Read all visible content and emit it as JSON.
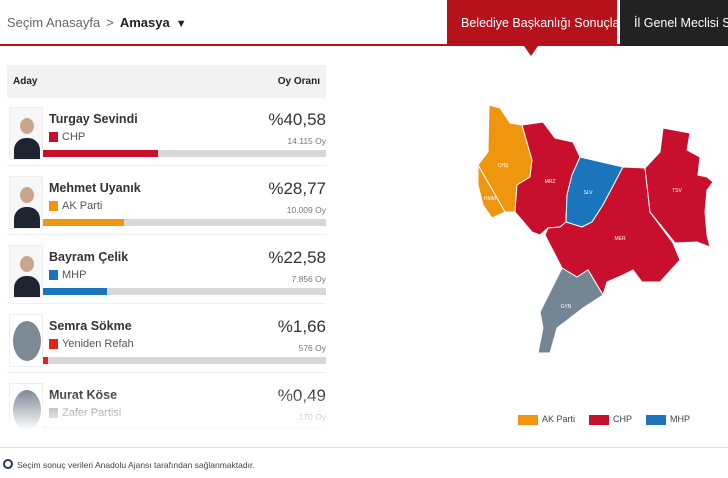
{
  "breadcrumb": {
    "home": "Seçim Anasayfa",
    "separator": ">",
    "current": "Amasya",
    "caret": "▼"
  },
  "tabs": [
    {
      "label": "Belediye Başkanlığı Sonuçları",
      "active": true
    },
    {
      "label": "İl Genel Meclisi Sonuçları",
      "active": false
    }
  ],
  "table": {
    "col_candidate": "Aday",
    "col_share": "Oy Oranı"
  },
  "candidates": [
    {
      "name": "Turgay Sevindi",
      "party": "CHP",
      "percent": "%40,58",
      "share": 40.58,
      "votes": "14.115 Oy",
      "color": "#c8102e",
      "photo": "photo"
    },
    {
      "name": "Mehmet Uyanık",
      "party": "AK Parti",
      "percent": "%28,77",
      "share": 28.77,
      "votes": "10.009 Oy",
      "color": "#f0960e",
      "photo": "photo"
    },
    {
      "name": "Bayram Çelik",
      "party": "MHP",
      "percent": "%22,58",
      "share": 22.58,
      "votes": "7.856 Oy",
      "color": "#1a75bc",
      "photo": "photo"
    },
    {
      "name": "Semra Sökme",
      "party": "Yeniden Refah",
      "percent": "%1,66",
      "share": 1.66,
      "votes": "576 Oy",
      "color": "#e2231a",
      "photo": "placeholder"
    },
    {
      "name": "Murat Köse",
      "party": "Zafer Partisi",
      "percent": "%0,49",
      "share": 0.49,
      "votes": "170 Oy",
      "color": "#999999",
      "photo": "placeholder"
    }
  ],
  "map": {
    "districts": [
      {
        "code": "CHŞ",
        "party": "AK Parti",
        "color": "#f0960e"
      },
      {
        "code": "HMM",
        "party": "AK Parti",
        "color": "#f0960e"
      },
      {
        "code": "MRZ",
        "party": "CHP",
        "color": "#c8102e"
      },
      {
        "code": "SLV",
        "party": "MHP",
        "color": "#1a75bc"
      },
      {
        "code": "MER",
        "party": "CHP",
        "color": "#c8102e"
      },
      {
        "code": "TSV",
        "party": "CHP",
        "color": "#c8102e"
      },
      {
        "code": "GYN",
        "party": "",
        "color": "#748594"
      }
    ],
    "legend": [
      {
        "label": "AK Parti",
        "color": "#f0960e"
      },
      {
        "label": "CHP",
        "color": "#c8102e"
      },
      {
        "label": "MHP",
        "color": "#1a75bc"
      }
    ]
  },
  "footer": {
    "text": "Seçim sonuç verileri Anadolu Ajansı tarafından sağlanmaktadır.",
    "icon": "anadolu-agency-icon"
  }
}
